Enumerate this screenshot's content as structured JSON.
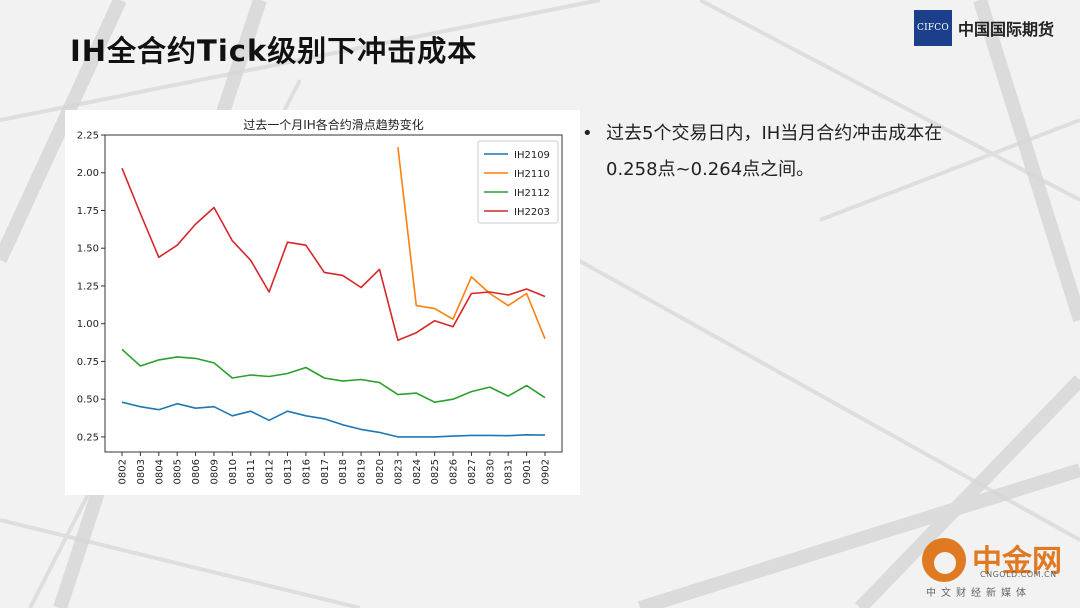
{
  "slide": {
    "title": "IH全合约Tick级别下冲击成本",
    "logo_box": "CIFCO",
    "logo_text": "中国国际期货",
    "bullet_line1": "过去5个交易日内，IH当月合约冲击成本在",
    "bullet_line2": "0.258点~0.264点之间。"
  },
  "watermark": {
    "name": "中金网",
    "url": "CNGOLD.COM.CN",
    "sub": "中文财经新媒体"
  },
  "chart_data": {
    "type": "line",
    "title": "过去一个月IH各合约滑点趋势变化",
    "xlabel": "",
    "ylabel": "",
    "categories": [
      "0802",
      "0803",
      "0804",
      "0805",
      "0806",
      "0809",
      "0810",
      "0811",
      "0812",
      "0813",
      "0816",
      "0817",
      "0818",
      "0819",
      "0820",
      "0823",
      "0824",
      "0825",
      "0826",
      "0827",
      "0830",
      "0831",
      "0901",
      "0902"
    ],
    "ylim": [
      0.15,
      2.25
    ],
    "yticks": [
      "0.25",
      "0.50",
      "0.75",
      "1.00",
      "1.25",
      "1.50",
      "1.75",
      "2.00",
      "2.25"
    ],
    "legend_position": "top-right",
    "grid": false,
    "series": [
      {
        "name": "IH2109",
        "color": "#1f77b4",
        "values": [
          0.48,
          0.45,
          0.43,
          0.47,
          0.44,
          0.45,
          0.39,
          0.42,
          0.36,
          0.42,
          0.39,
          0.37,
          0.33,
          0.3,
          0.28,
          0.25,
          0.25,
          0.25,
          0.255,
          0.26,
          0.26,
          0.258,
          0.264,
          0.262
        ]
      },
      {
        "name": "IH2110",
        "color": "#ff7f0e",
        "values": [
          null,
          null,
          null,
          null,
          null,
          null,
          null,
          null,
          null,
          null,
          null,
          null,
          null,
          null,
          null,
          2.17,
          1.12,
          1.1,
          1.03,
          1.31,
          1.2,
          1.12,
          1.2,
          0.9
        ]
      },
      {
        "name": "IH2112",
        "color": "#2ca02c",
        "values": [
          0.83,
          0.72,
          0.76,
          0.78,
          0.77,
          0.74,
          0.64,
          0.66,
          0.65,
          0.67,
          0.71,
          0.64,
          0.62,
          0.63,
          0.61,
          0.53,
          0.54,
          0.48,
          0.5,
          0.55,
          0.58,
          0.52,
          0.59,
          0.51
        ]
      },
      {
        "name": "IH2203",
        "color": "#d62728",
        "values": [
          2.03,
          1.73,
          1.44,
          1.52,
          1.66,
          1.77,
          1.55,
          1.42,
          1.21,
          1.54,
          1.52,
          1.34,
          1.32,
          1.24,
          1.36,
          0.89,
          0.94,
          1.02,
          0.98,
          1.2,
          1.21,
          1.19,
          1.23,
          1.18
        ]
      }
    ]
  }
}
